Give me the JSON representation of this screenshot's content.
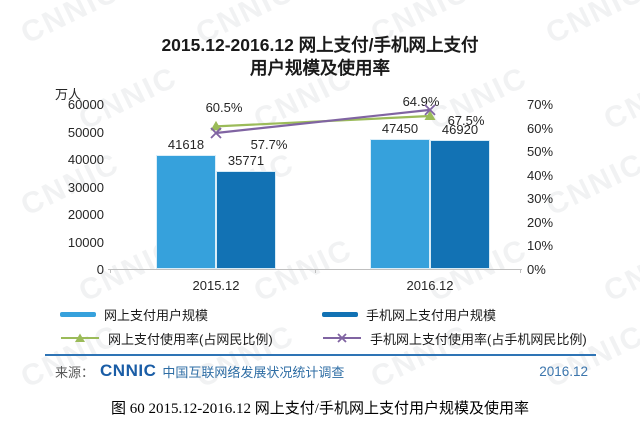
{
  "watermark": "CNNIC",
  "title": {
    "line1": "2015.12-2016.12 网上支付/手机网上支付",
    "line2": "用户规模及使用率"
  },
  "chart_data": {
    "type": "bar+line",
    "categories": [
      "2015.12",
      "2016.12"
    ],
    "unit_left": "万人",
    "bar_series": [
      {
        "name": "网上支付用户规模",
        "values": [
          41618,
          47450
        ],
        "color": "#36A1DC"
      },
      {
        "name": "手机网上支付用户规模",
        "values": [
          35771,
          46920
        ],
        "color": "#1272B4"
      }
    ],
    "line_series": [
      {
        "name": "网上支付使用率(占网民比例)",
        "values": [
          60.5,
          64.9
        ],
        "color": "#9BBB59",
        "marker": "triangle"
      },
      {
        "name": "手机网上支付使用率(占手机网民比例)",
        "values": [
          57.7,
          67.5
        ],
        "color": "#8064A2",
        "marker": "x"
      }
    ],
    "y_left": {
      "min": 0,
      "max": 60000,
      "step": 10000
    },
    "y_right": {
      "min": 0,
      "max": 70,
      "step": 10,
      "suffix": "%"
    },
    "grid": false,
    "legend_position": "bottom"
  },
  "source": {
    "prefix": "来源：",
    "logo": "CNNIC",
    "text": "中国互联网络发展状况统计调查",
    "date": "2016.12"
  },
  "caption": "图 60  2015.12-2016.12 网上支付/手机网上支付用户规模及使用率",
  "colors": {
    "bar_online": "#36A1DC",
    "bar_mobile": "#1272B4",
    "line_online_rate": "#9BBB59",
    "line_mobile_rate": "#8064A2",
    "separator": "#2E74B5",
    "axis": "#BFBFBF",
    "source_blue": "#2E6DA4"
  }
}
